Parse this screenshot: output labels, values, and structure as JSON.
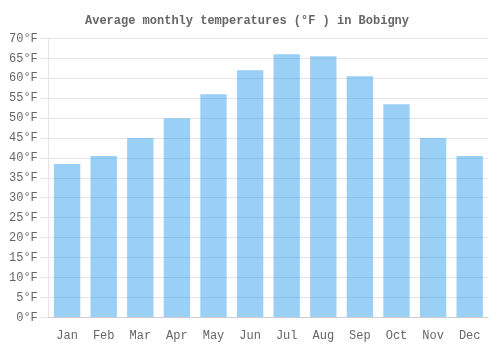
{
  "chart_data": {
    "type": "bar",
    "title": "Average monthly temperatures (°F ) in Bobigny",
    "categories": [
      "Jan",
      "Feb",
      "Mar",
      "Apr",
      "May",
      "Jun",
      "Jul",
      "Aug",
      "Sep",
      "Oct",
      "Nov",
      "Dec"
    ],
    "values": [
      38.5,
      40.5,
      45.0,
      50.0,
      56.0,
      62.0,
      66.0,
      65.5,
      60.5,
      53.5,
      45.0,
      40.5
    ],
    "ylim": [
      0,
      70
    ],
    "yticks": [
      {
        "value": 0,
        "label": "0°F"
      },
      {
        "value": 5,
        "label": "5°F"
      },
      {
        "value": 10,
        "label": "10°F"
      },
      {
        "value": 15,
        "label": "15°F"
      },
      {
        "value": 20,
        "label": "20°F"
      },
      {
        "value": 25,
        "label": "25°F"
      },
      {
        "value": 30,
        "label": "30°F"
      },
      {
        "value": 35,
        "label": "35°F"
      },
      {
        "value": 40,
        "label": "40°F"
      },
      {
        "value": 45,
        "label": "45°F"
      },
      {
        "value": 50,
        "label": "50°F"
      },
      {
        "value": 55,
        "label": "55°F"
      },
      {
        "value": 60,
        "label": "60°F"
      },
      {
        "value": 65,
        "label": "65°F"
      },
      {
        "value": 70,
        "label": "70°F"
      }
    ],
    "grid": true
  }
}
